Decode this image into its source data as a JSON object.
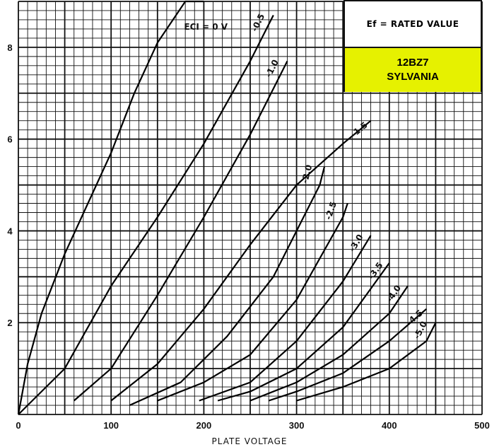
{
  "chart_data": {
    "type": "line",
    "title": "",
    "xlabel": "PLATE VOLTAGE",
    "ylabel": "",
    "xlim": [
      0,
      500
    ],
    "ylim": [
      0,
      9
    ],
    "xticks": [
      0,
      100,
      200,
      300,
      400,
      500
    ],
    "yticks": [
      2,
      4,
      6,
      8
    ],
    "grid": true,
    "annotations": {
      "condition": "Ef = RATED VALUE",
      "tube_type": "12BZ7",
      "manufacturer": "SYLVANIA"
    },
    "series": [
      {
        "name": "ECI = 0 V",
        "label": "ECI = 0 V",
        "x": [
          0,
          10,
          25,
          50,
          75,
          100,
          125,
          150,
          180,
          200
        ],
        "y": [
          0,
          1.1,
          2.2,
          3.5,
          4.6,
          5.7,
          7.0,
          8.1,
          9.0,
          9.0
        ]
      },
      {
        "name": "-0.5",
        "label": "-0.5",
        "x": [
          0,
          50,
          100,
          150,
          200,
          250,
          275
        ],
        "y": [
          0,
          1.0,
          2.8,
          4.3,
          5.9,
          7.7,
          8.7
        ]
      },
      {
        "name": "-1.0",
        "label": "-1.0",
        "x": [
          60,
          100,
          150,
          200,
          250,
          290
        ],
        "y": [
          0.3,
          1.0,
          2.6,
          4.3,
          6.1,
          7.7
        ]
      },
      {
        "name": "-1.5",
        "label": "-1.5",
        "x": [
          100,
          150,
          200,
          250,
          300,
          350,
          380
        ],
        "y": [
          0.3,
          1.1,
          2.3,
          3.7,
          5.0,
          5.9,
          6.4
        ]
      },
      {
        "name": "-2.0",
        "label": "-2.0",
        "x": [
          120,
          175,
          225,
          275,
          325,
          330
        ],
        "y": [
          0.2,
          0.7,
          1.7,
          3.0,
          5.0,
          5.4
        ]
      },
      {
        "name": "-2.5",
        "label": "-2.5",
        "x": [
          150,
          200,
          250,
          300,
          350,
          355
        ],
        "y": [
          0.3,
          0.7,
          1.3,
          2.5,
          4.3,
          4.6
        ]
      },
      {
        "name": "-3.0",
        "label": "-3.0",
        "x": [
          195,
          250,
          300,
          350,
          380
        ],
        "y": [
          0.3,
          0.7,
          1.6,
          2.9,
          3.9
        ]
      },
      {
        "name": "-3.5",
        "label": "-3.5",
        "x": [
          215,
          250,
          300,
          350,
          400
        ],
        "y": [
          0.3,
          0.5,
          1.0,
          1.9,
          3.3
        ]
      },
      {
        "name": "-4.0",
        "label": "-4.0",
        "x": [
          250,
          300,
          350,
          400,
          420
        ],
        "y": [
          0.3,
          0.7,
          1.3,
          2.2,
          2.8
        ]
      },
      {
        "name": "-4.5",
        "label": "-4.5",
        "x": [
          270,
          300,
          350,
          400,
          440
        ],
        "y": [
          0.3,
          0.5,
          0.9,
          1.6,
          2.3
        ]
      },
      {
        "name": "-5.0",
        "label": "-5.0",
        "x": [
          300,
          350,
          400,
          440,
          450
        ],
        "y": [
          0.3,
          0.6,
          1.0,
          1.6,
          2.0
        ]
      }
    ]
  }
}
